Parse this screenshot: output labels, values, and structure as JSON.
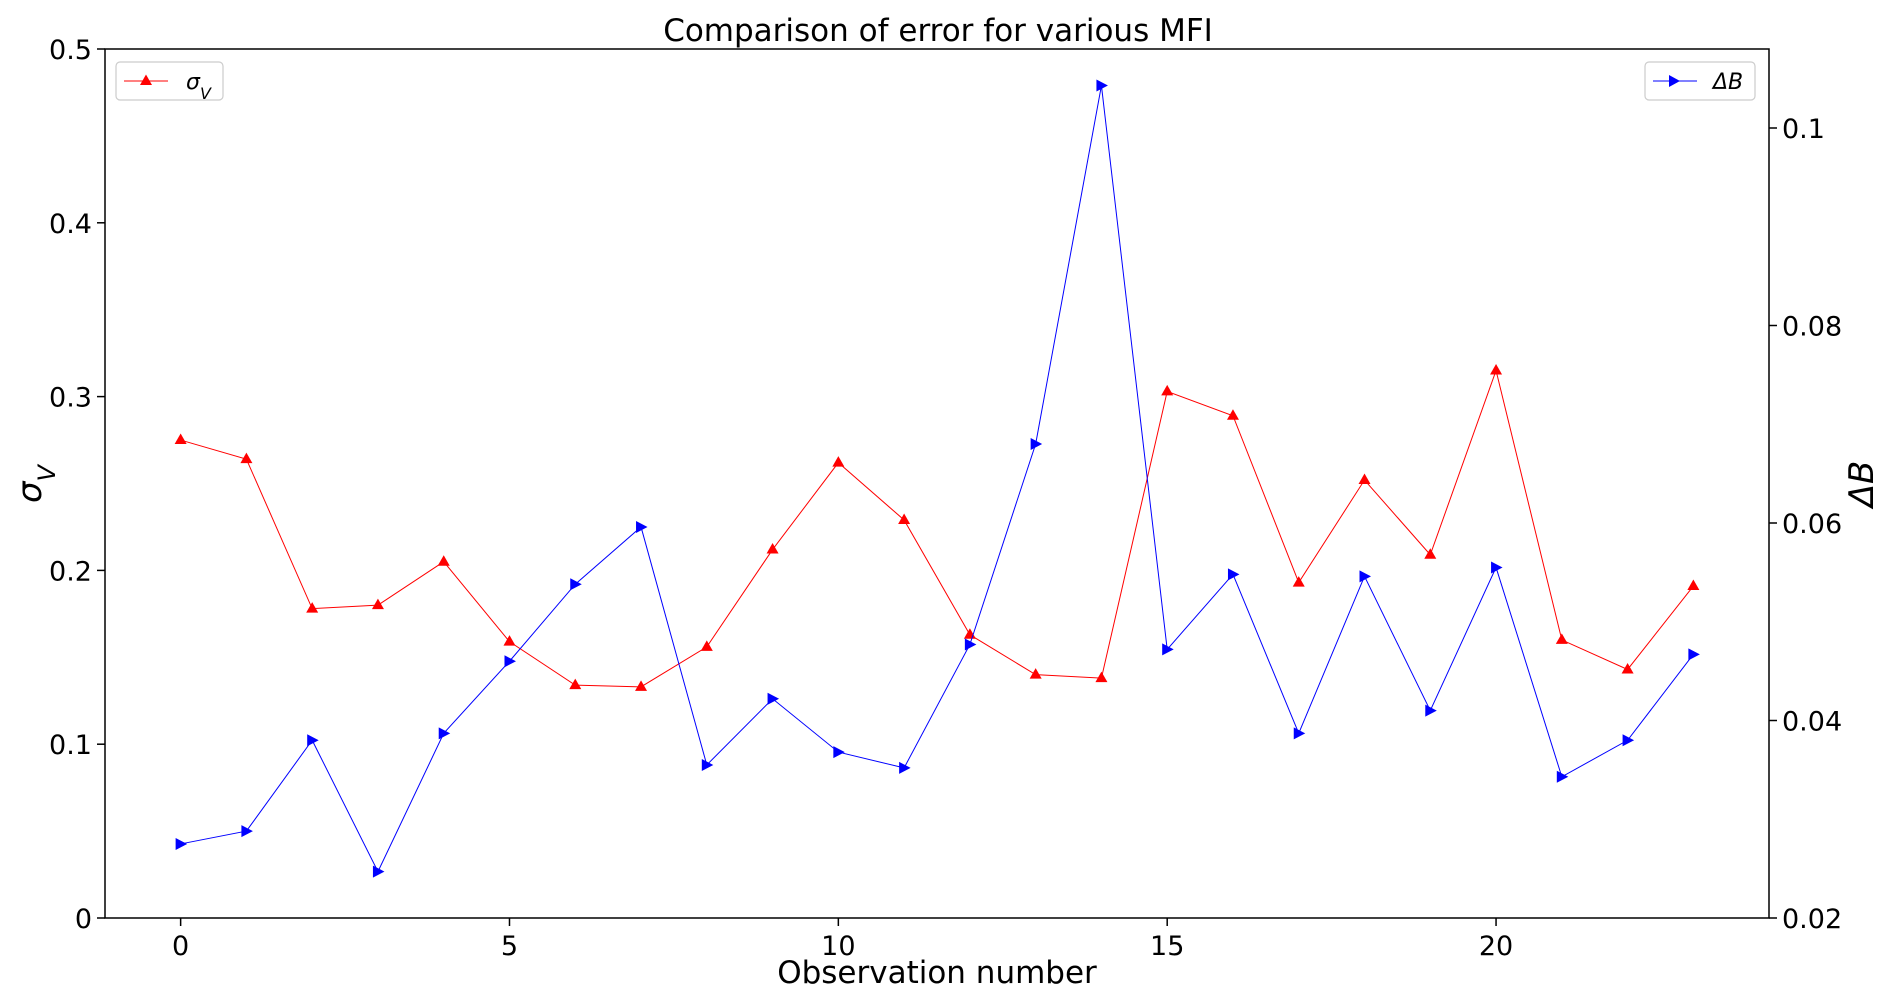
{
  "chart_data": {
    "type": "line",
    "title": "Comparison of error for various MFI",
    "xlabel": "Observation number",
    "x": [
      0,
      1,
      2,
      3,
      4,
      5,
      6,
      7,
      8,
      9,
      10,
      11,
      12,
      13,
      14,
      15,
      16,
      17,
      18,
      19,
      20,
      21,
      22,
      23
    ],
    "xlim": [
      -1.15,
      24.15
    ],
    "xticks": [
      0,
      5,
      10,
      15,
      20
    ],
    "axes": {
      "left": {
        "label": "σ",
        "label_sub": "V",
        "label_color": "#ff0000",
        "ylim": [
          0,
          0.5
        ],
        "ticks": [
          "0",
          "0.1",
          "0.2",
          "0.3",
          "0.4",
          "0.5"
        ]
      },
      "right": {
        "label": "ΔB",
        "label_color": "#0000ff",
        "ylim": [
          0.02,
          0.108
        ],
        "ticks": [
          "0.02",
          "0.04",
          "0.06",
          "0.08",
          "0.1"
        ]
      }
    },
    "series": [
      {
        "name": "σ",
        "name_sub": "V",
        "axis": "left",
        "color": "#ff0000",
        "marker": "triangle-up",
        "legend": "top-left",
        "values": [
          0.275,
          0.264,
          0.178,
          0.18,
          0.205,
          0.159,
          0.134,
          0.133,
          0.156,
          0.212,
          0.262,
          0.229,
          0.163,
          0.14,
          0.138,
          0.303,
          0.289,
          0.193,
          0.252,
          0.209,
          0.315,
          0.16,
          0.143,
          0.191
        ]
      },
      {
        "name": "ΔB",
        "axis": "right",
        "color": "#0000ff",
        "marker": "triangle-right",
        "legend": "top-right",
        "values": [
          0.0275,
          0.0288,
          0.038,
          0.0247,
          0.0387,
          0.046,
          0.0538,
          0.0596,
          0.0355,
          0.0422,
          0.0368,
          0.0352,
          0.0477,
          0.068,
          0.1043,
          0.0472,
          0.0548,
          0.0387,
          0.0546,
          0.041,
          0.0555,
          0.0343,
          0.038,
          0.0467
        ]
      }
    ],
    "grid": false
  }
}
